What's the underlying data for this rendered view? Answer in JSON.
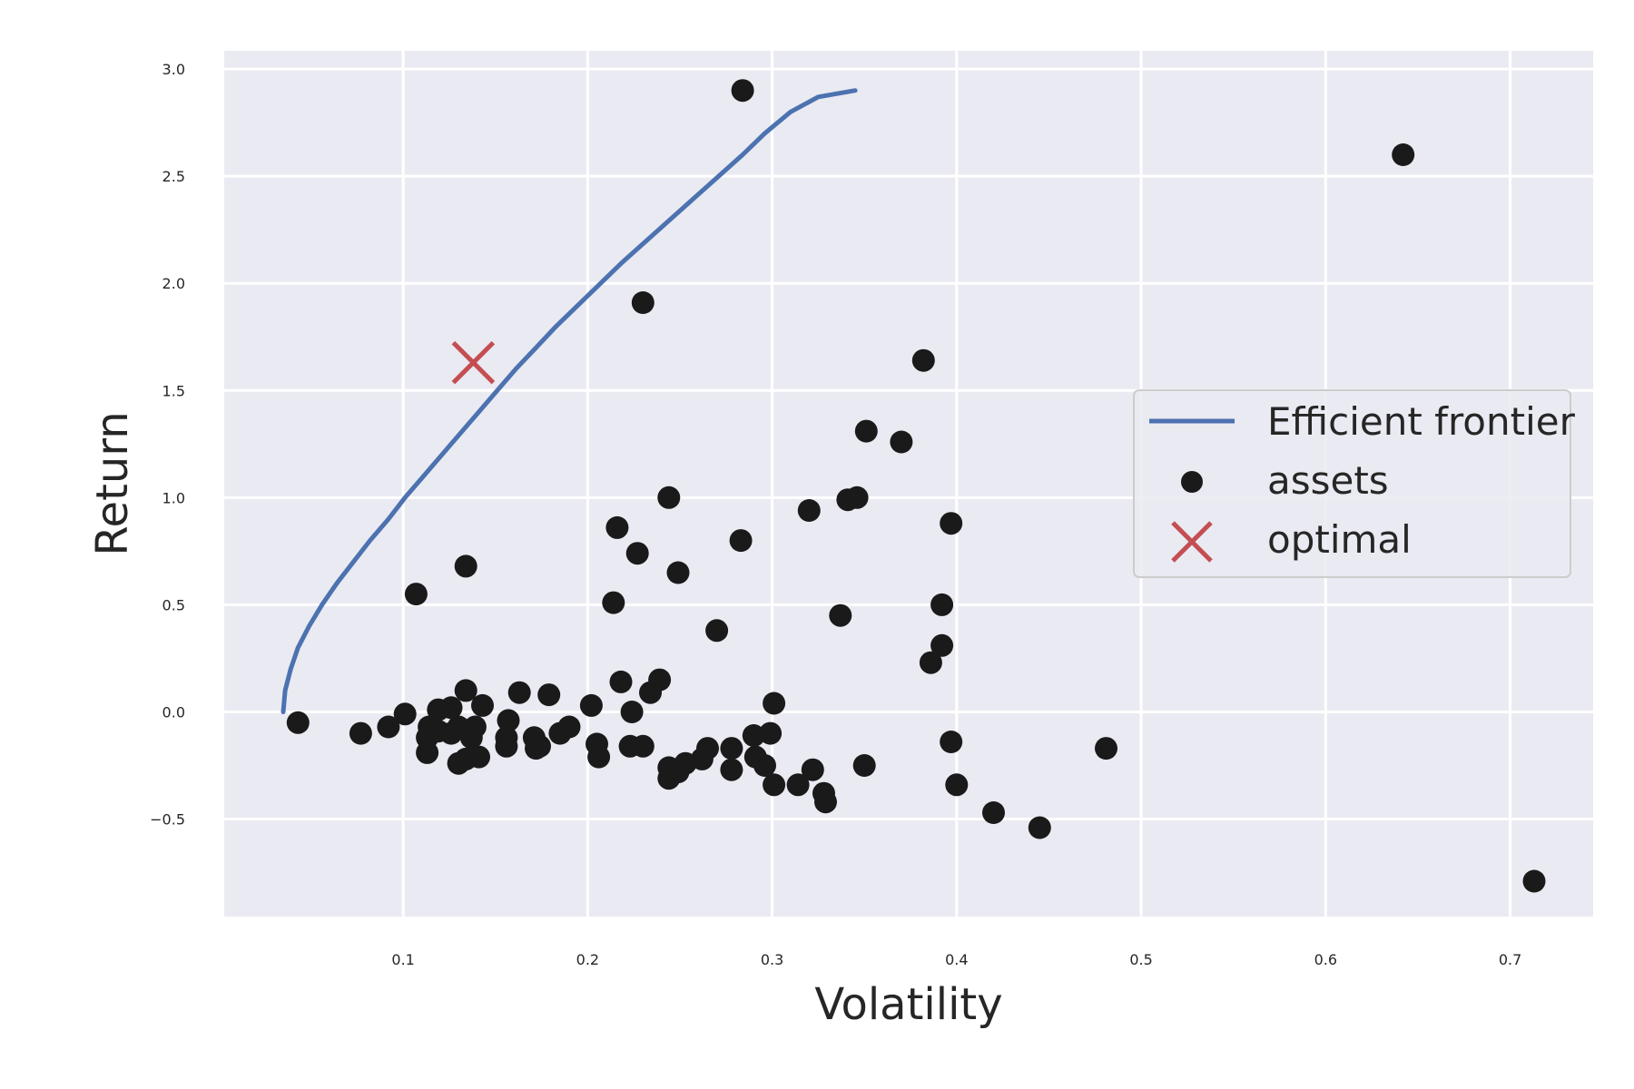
{
  "chart_data": {
    "type": "scatter",
    "xlabel": "Volatility",
    "ylabel": "Return",
    "xlim": [
      0.003,
      0.745
    ],
    "ylim": [
      -0.955,
      3.085
    ],
    "x_ticks": [
      0.1,
      0.2,
      0.3,
      0.4,
      0.5,
      0.6,
      0.7
    ],
    "y_ticks": [
      -0.5,
      0.0,
      0.5,
      1.0,
      1.5,
      2.0,
      2.5,
      3.0
    ],
    "x_tick_labels": [
      "0.1",
      "0.2",
      "0.3",
      "0.4",
      "0.5",
      "0.6",
      "0.7"
    ],
    "y_tick_labels": [
      "−0.5",
      "0.0",
      "0.5",
      "1.0",
      "1.5",
      "2.0",
      "2.5",
      "3.0"
    ],
    "grid": true,
    "legend_position": "center-right",
    "series": [
      {
        "name": "Efficient frontier",
        "kind": "line",
        "color": "#4c72b0",
        "points": [
          [
            0.035,
            0.0
          ],
          [
            0.036,
            0.1
          ],
          [
            0.039,
            0.2
          ],
          [
            0.043,
            0.3
          ],
          [
            0.049,
            0.4
          ],
          [
            0.056,
            0.5
          ],
          [
            0.064,
            0.6
          ],
          [
            0.073,
            0.7
          ],
          [
            0.082,
            0.8
          ],
          [
            0.092,
            0.9
          ],
          [
            0.101,
            1.0
          ],
          [
            0.111,
            1.1
          ],
          [
            0.121,
            1.2
          ],
          [
            0.131,
            1.3
          ],
          [
            0.141,
            1.4
          ],
          [
            0.151,
            1.5
          ],
          [
            0.161,
            1.6
          ],
          [
            0.172,
            1.7
          ],
          [
            0.183,
            1.8
          ],
          [
            0.195,
            1.9
          ],
          [
            0.207,
            2.0
          ],
          [
            0.219,
            2.1
          ],
          [
            0.232,
            2.2
          ],
          [
            0.245,
            2.3
          ],
          [
            0.258,
            2.4
          ],
          [
            0.271,
            2.5
          ],
          [
            0.284,
            2.6
          ],
          [
            0.296,
            2.7
          ],
          [
            0.31,
            2.8
          ],
          [
            0.325,
            2.87
          ],
          [
            0.345,
            2.9
          ]
        ]
      },
      {
        "name": "assets",
        "kind": "scatter",
        "color": "#1a1a1a",
        "points": [
          [
            0.284,
            2.9
          ],
          [
            0.642,
            2.6
          ],
          [
            0.23,
            1.91
          ],
          [
            0.382,
            1.64
          ],
          [
            0.351,
            1.31
          ],
          [
            0.37,
            1.26
          ],
          [
            0.244,
            1.0
          ],
          [
            0.346,
            1.0
          ],
          [
            0.341,
            0.99
          ],
          [
            0.32,
            0.94
          ],
          [
            0.397,
            0.88
          ],
          [
            0.216,
            0.86
          ],
          [
            0.283,
            0.8
          ],
          [
            0.227,
            0.74
          ],
          [
            0.134,
            0.68
          ],
          [
            0.249,
            0.65
          ],
          [
            0.107,
            0.55
          ],
          [
            0.214,
            0.51
          ],
          [
            0.392,
            0.5
          ],
          [
            0.337,
            0.45
          ],
          [
            0.27,
            0.38
          ],
          [
            0.392,
            0.31
          ],
          [
            0.386,
            0.23
          ],
          [
            0.239,
            0.15
          ],
          [
            0.218,
            0.14
          ],
          [
            0.134,
            0.1
          ],
          [
            0.163,
            0.09
          ],
          [
            0.179,
            0.08
          ],
          [
            0.234,
            0.09
          ],
          [
            0.301,
            0.04
          ],
          [
            0.143,
            0.03
          ],
          [
            0.202,
            0.03
          ],
          [
            0.126,
            0.02
          ],
          [
            0.119,
            0.01
          ],
          [
            0.224,
            0.0
          ],
          [
            0.101,
            -0.01
          ],
          [
            0.043,
            -0.05
          ],
          [
            0.157,
            -0.04
          ],
          [
            0.139,
            -0.07
          ],
          [
            0.13,
            -0.07
          ],
          [
            0.114,
            -0.07
          ],
          [
            0.092,
            -0.07
          ],
          [
            0.19,
            -0.07
          ],
          [
            0.077,
            -0.1
          ],
          [
            0.119,
            -0.09
          ],
          [
            0.126,
            -0.1
          ],
          [
            0.185,
            -0.1
          ],
          [
            0.299,
            -0.1
          ],
          [
            0.29,
            -0.11
          ],
          [
            0.156,
            -0.12
          ],
          [
            0.171,
            -0.12
          ],
          [
            0.137,
            -0.12
          ],
          [
            0.113,
            -0.12
          ],
          [
            0.205,
            -0.15
          ],
          [
            0.156,
            -0.16
          ],
          [
            0.174,
            -0.16
          ],
          [
            0.223,
            -0.16
          ],
          [
            0.23,
            -0.16
          ],
          [
            0.481,
            -0.17
          ],
          [
            0.172,
            -0.17
          ],
          [
            0.397,
            -0.14
          ],
          [
            0.265,
            -0.17
          ],
          [
            0.278,
            -0.17
          ],
          [
            0.113,
            -0.19
          ],
          [
            0.291,
            -0.21
          ],
          [
            0.206,
            -0.21
          ],
          [
            0.141,
            -0.21
          ],
          [
            0.262,
            -0.22
          ],
          [
            0.134,
            -0.22
          ],
          [
            0.13,
            -0.24
          ],
          [
            0.253,
            -0.24
          ],
          [
            0.296,
            -0.25
          ],
          [
            0.35,
            -0.25
          ],
          [
            0.322,
            -0.27
          ],
          [
            0.244,
            -0.26
          ],
          [
            0.278,
            -0.27
          ],
          [
            0.249,
            -0.28
          ],
          [
            0.244,
            -0.31
          ],
          [
            0.301,
            -0.34
          ],
          [
            0.314,
            -0.34
          ],
          [
            0.4,
            -0.34
          ],
          [
            0.328,
            -0.38
          ],
          [
            0.329,
            -0.42
          ],
          [
            0.42,
            -0.47
          ],
          [
            0.445,
            -0.54
          ],
          [
            0.713,
            -0.79
          ]
        ]
      },
      {
        "name": "optimal",
        "kind": "marker",
        "color": "#c44e52",
        "points": [
          [
            0.138,
            1.63
          ]
        ]
      }
    ]
  }
}
